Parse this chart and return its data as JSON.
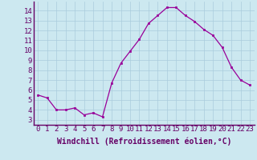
{
  "x": [
    0,
    1,
    2,
    3,
    4,
    5,
    6,
    7,
    8,
    9,
    10,
    11,
    12,
    13,
    14,
    15,
    16,
    17,
    18,
    19,
    20,
    21,
    22,
    23
  ],
  "y": [
    5.5,
    5.2,
    4.0,
    4.0,
    4.2,
    3.5,
    3.7,
    3.3,
    6.7,
    8.7,
    9.9,
    11.1,
    12.7,
    13.5,
    14.3,
    14.3,
    13.5,
    12.9,
    12.1,
    11.5,
    10.3,
    8.3,
    7.0,
    6.5
  ],
  "line_color": "#990099",
  "marker": "s",
  "marker_size": 2,
  "bg_color": "#cce8f0",
  "grid_color": "#aaccdd",
  "xlabel": "Windchill (Refroidissement éolien,°C)",
  "xlabel_fontsize": 7,
  "tick_fontsize": 6.5,
  "xlim": [
    -0.5,
    23.5
  ],
  "ylim": [
    2.5,
    14.9
  ],
  "yticks": [
    3,
    4,
    5,
    6,
    7,
    8,
    9,
    10,
    11,
    12,
    13,
    14
  ],
  "xticks": [
    0,
    1,
    2,
    3,
    4,
    5,
    6,
    7,
    8,
    9,
    10,
    11,
    12,
    13,
    14,
    15,
    16,
    17,
    18,
    19,
    20,
    21,
    22,
    23
  ]
}
